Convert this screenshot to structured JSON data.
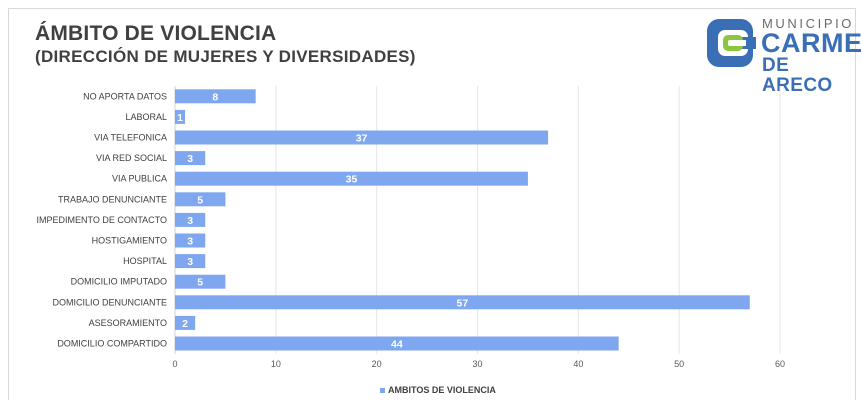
{
  "title_line1": "ÁMBITO DE VIOLENCIA",
  "title_line2": "(DIRECCIÓN DE MUJERES Y DIVERSIDADES)",
  "logo": {
    "municipio": "MUNICIPIO",
    "carmen": "CARMEN",
    "de_areco": "DE ARECO",
    "colors": {
      "blue": "#3b6fb5",
      "green": "#8cc63f"
    }
  },
  "bar_color": "#7ea7ef",
  "chart_data": {
    "type": "bar",
    "orientation": "horizontal",
    "categories": [
      "NO APORTA DATOS",
      "LABORAL",
      "VIA TELEFONICA",
      "VIA RED SOCIAL",
      "VIA PUBLICA",
      "TRABAJO DENUNCIANTE",
      "IMPEDIMENTO DE CONTACTO",
      "HOSTIGAMIENTO ",
      "HOSPITAL",
      "DOMICILIO IMPUTADO",
      "DOMICILIO DENUNCIANTE",
      "ASESORAMIENTO",
      "DOMICILIO COMPARTIDO"
    ],
    "series": [
      {
        "name": "AMBITOS DE VIOLENCIA",
        "values": [
          8,
          1,
          37,
          3,
          35,
          5,
          3,
          3,
          3,
          5,
          57,
          2,
          44
        ]
      }
    ],
    "xlim": [
      0,
      60
    ],
    "xticks": [
      0,
      10,
      20,
      30,
      40,
      50,
      60
    ],
    "grid": true,
    "legend_position": "bottom"
  }
}
